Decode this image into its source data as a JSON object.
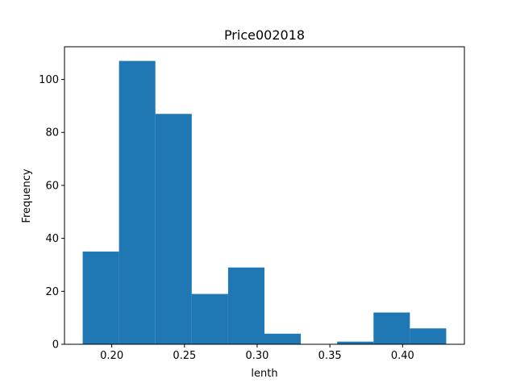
{
  "chart_data": {
    "type": "histogram",
    "title": "Price002018",
    "xlabel": "lenth",
    "ylabel": "Frequency",
    "bin_edges": [
      0.18,
      0.205,
      0.23,
      0.255,
      0.28,
      0.305,
      0.33,
      0.355,
      0.38,
      0.405,
      0.43
    ],
    "counts": [
      35,
      107,
      87,
      19,
      29,
      4,
      0,
      1,
      12,
      6
    ],
    "xlim": [
      0.1675,
      0.4425
    ],
    "ylim": [
      0,
      112.35
    ],
    "xticks": [
      0.2,
      0.25,
      0.3,
      0.35,
      0.4
    ],
    "xtick_labels": [
      "0.20",
      "0.25",
      "0.30",
      "0.35",
      "0.40"
    ],
    "yticks": [
      0,
      20,
      40,
      60,
      80,
      100
    ],
    "ytick_labels": [
      "0",
      "20",
      "40",
      "60",
      "80",
      "100"
    ],
    "bar_color": "#1f77b4",
    "grid": false,
    "legend": "none"
  }
}
